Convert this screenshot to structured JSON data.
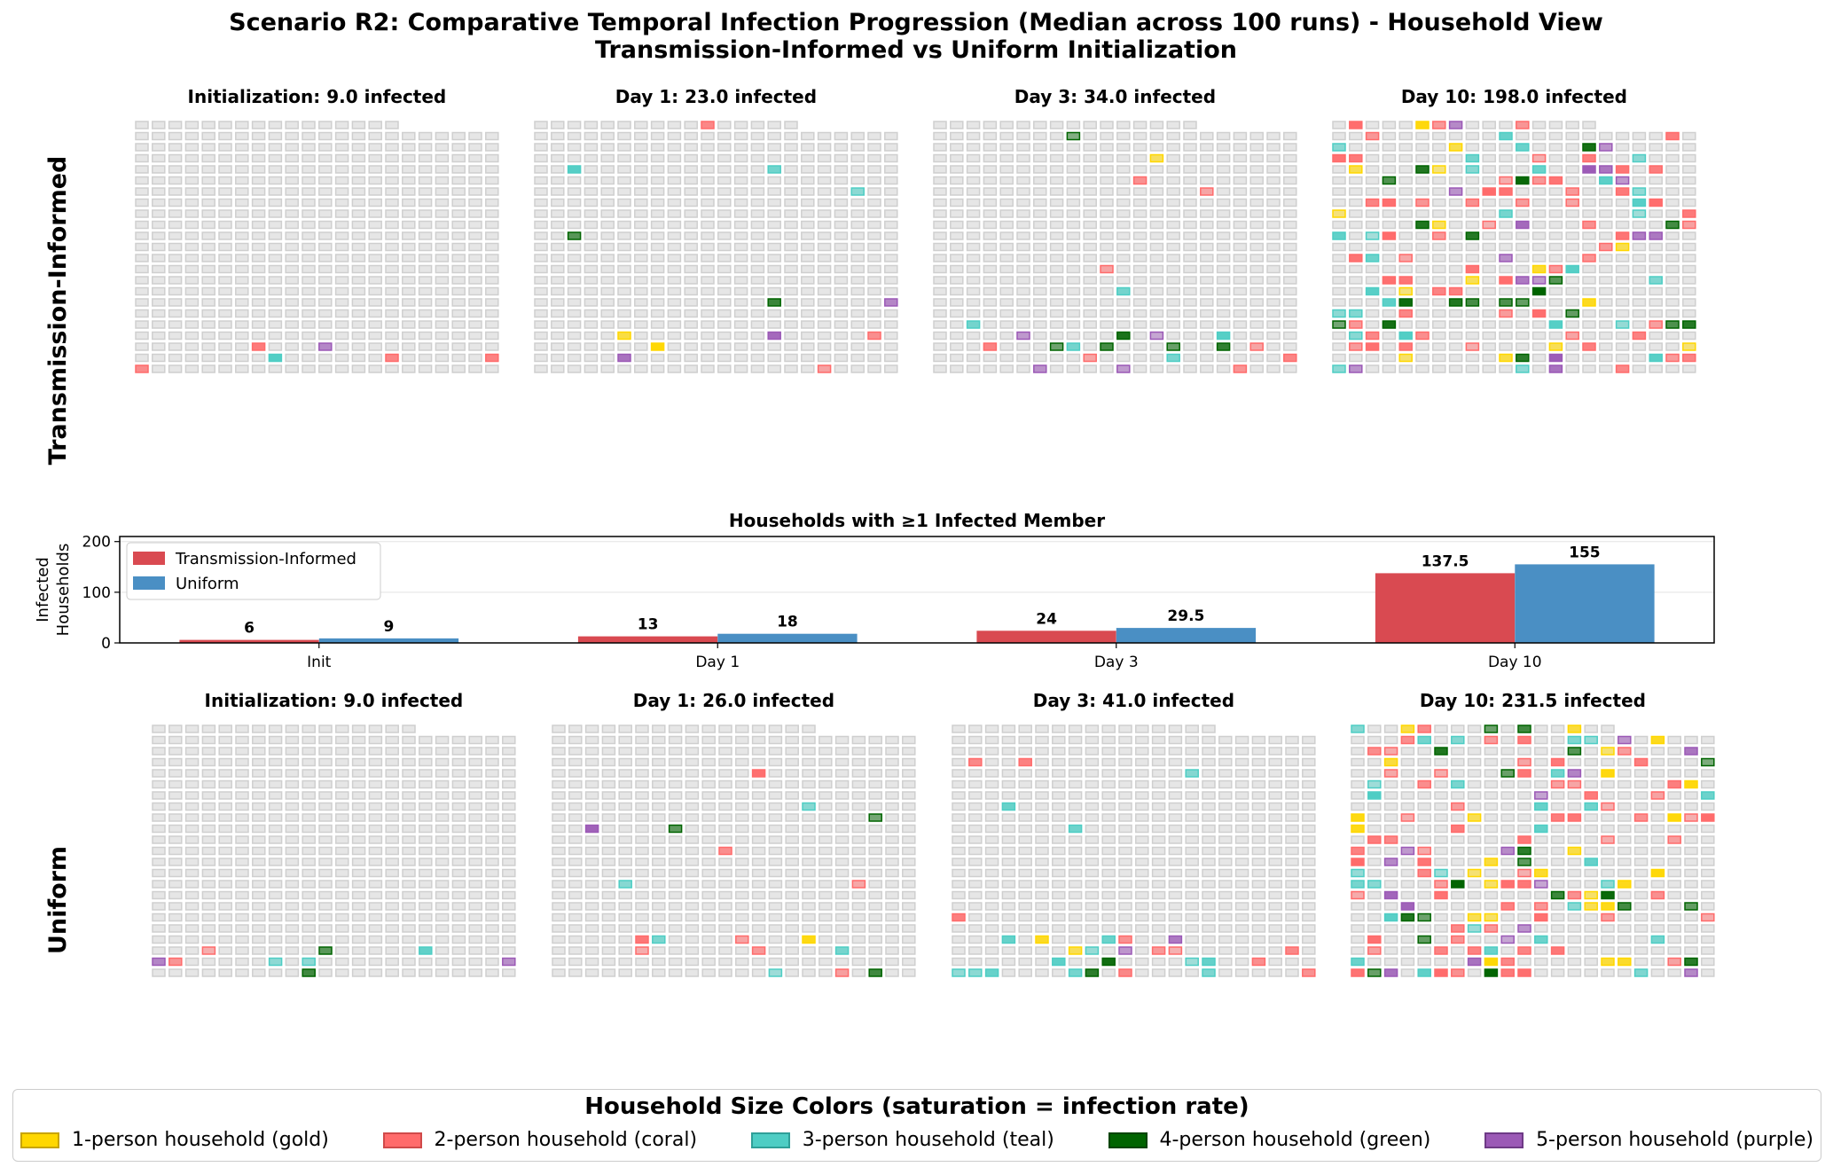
{
  "title_line1": "Scenario R2: Comparative Temporal Infection Progression (Median across 100 runs) - Household View",
  "title_line2": "Transmission-Informed vs Uniform Initialization",
  "rows": [
    {
      "label": "Transmission-Informed",
      "panels": [
        {
          "title": "Initialization: 9.0 infected"
        },
        {
          "title": "Day 1: 23.0 infected"
        },
        {
          "title": "Day 3: 34.0 infected"
        },
        {
          "title": "Day 10: 198.0 infected"
        }
      ]
    },
    {
      "label": "Uniform",
      "panels": [
        {
          "title": "Initialization: 9.0 infected"
        },
        {
          "title": "Day 1: 26.0 infected"
        },
        {
          "title": "Day 3: 41.0 infected"
        },
        {
          "title": "Day 10: 231.5 infected"
        }
      ]
    }
  ],
  "chart_data": {
    "type": "bar",
    "title": "Households with ≥1 Infected Member",
    "ylabel": "Infected Households",
    "ylabel_lines": [
      "Infected",
      "Households"
    ],
    "categories": [
      "Init",
      "Day 1",
      "Day 3",
      "Day 10"
    ],
    "ylim": [
      0,
      210
    ],
    "yticks": [
      0,
      100,
      200
    ],
    "legend_position": "upper-left",
    "series": [
      {
        "name": "Transmission-Informed",
        "color": "#d94a51",
        "values": [
          6,
          13,
          24,
          137.5
        ],
        "labels": [
          "6",
          "13",
          "24",
          "137.5"
        ]
      },
      {
        "name": "Uniform",
        "color": "#4a8fc4",
        "values": [
          9,
          18,
          29.5,
          155
        ],
        "labels": [
          "9",
          "18",
          "29.5",
          "155"
        ]
      }
    ]
  },
  "legend": {
    "title": "Household Size Colors (saturation = infection rate)",
    "items": [
      {
        "label": "1-person household (gold)",
        "fill": "#ffd700",
        "edge": "#c8a400"
      },
      {
        "label": "2-person household (coral)",
        "fill": "#ff6b6b",
        "edge": "#d04a4a"
      },
      {
        "label": "3-person household (teal)",
        "fill": "#4ecdc4",
        "edge": "#2f9f98"
      },
      {
        "label": "4-person household (green)",
        "fill": "#006400",
        "edge": "#004400"
      },
      {
        "label": "5-person household (purple)",
        "fill": "#9b59b6",
        "edge": "#6e3a86"
      }
    ]
  },
  "grid": {
    "empty_color": "#e6e6e6",
    "empty_edge": "#cfcfcf"
  }
}
